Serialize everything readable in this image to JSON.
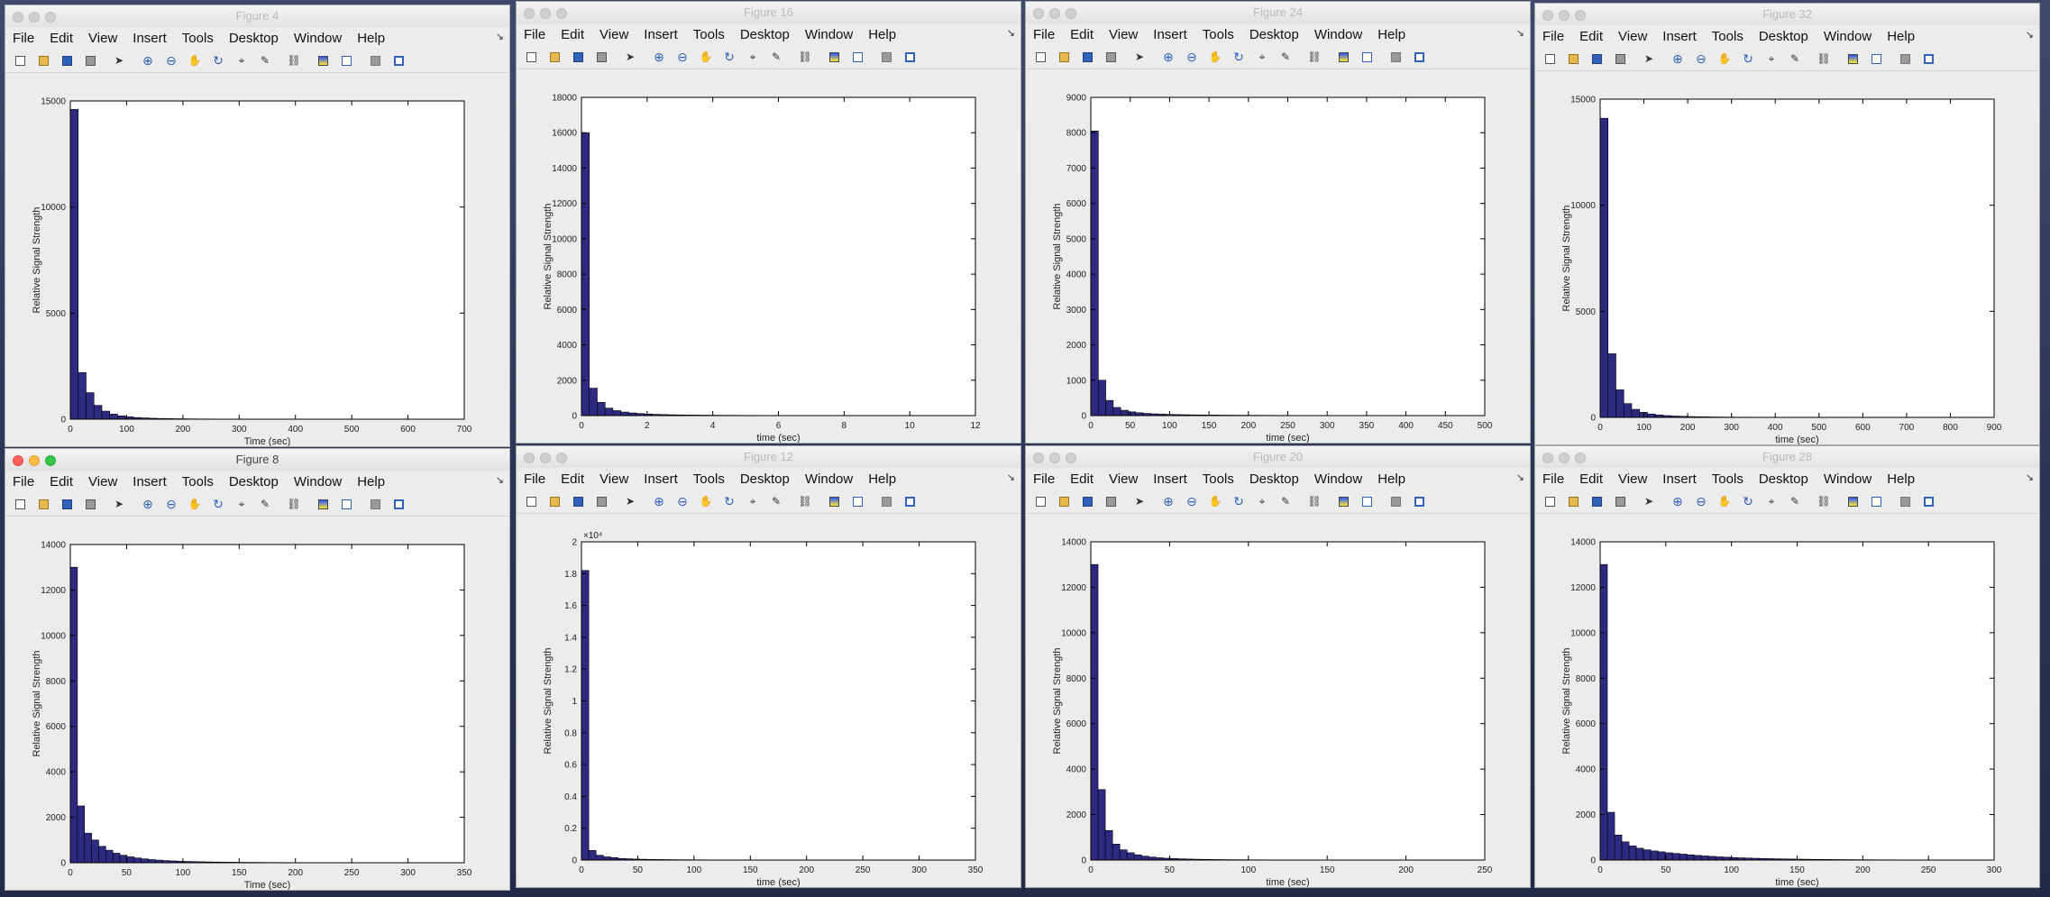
{
  "menu": [
    "File",
    "Edit",
    "View",
    "Insert",
    "Tools",
    "Desktop",
    "Window",
    "Help"
  ],
  "toolbar_icons": [
    "new-figure-icon",
    "open-file-icon",
    "save-icon",
    "print-icon",
    "edit-plot-arrow-icon",
    "zoom-in-icon",
    "zoom-out-icon",
    "pan-hand-icon",
    "rotate-3d-icon",
    "data-cursor-icon",
    "brush-icon",
    "link-plot-icon",
    "colorbar-icon",
    "legend-icon",
    "hide-plot-tools-icon",
    "show-plot-tools-icon"
  ],
  "colors": {
    "bar_fill": "#2e2a82",
    "bar_edge": "#000000",
    "axes_bg": "#ffffff",
    "window_bg": "#ececec"
  },
  "windows": [
    {
      "title": "Figure 4",
      "active": false
    },
    {
      "title": "Figure 16",
      "active": false
    },
    {
      "title": "Figure 24",
      "active": false
    },
    {
      "title": "Figure 32",
      "active": false
    },
    {
      "title": "Figure 8",
      "active": true
    },
    {
      "title": "Figure 12",
      "active": false
    },
    {
      "title": "Figure 20",
      "active": false
    },
    {
      "title": "Figure 28",
      "active": false
    }
  ],
  "chart_data": [
    {
      "figure": "Figure 4",
      "type": "bar",
      "xlabel": "Time (sec)",
      "ylabel": "Relative Signal Strength",
      "xlim": [
        0,
        700
      ],
      "ylim": [
        0,
        15000
      ],
      "xticks": [
        0,
        100,
        200,
        300,
        400,
        500,
        600,
        700
      ],
      "yticks": [
        0,
        5000,
        10000,
        15000
      ],
      "bin_width": 14,
      "values": [
        14600,
        2200,
        1250,
        650,
        380,
        240,
        160,
        110,
        80,
        60,
        45,
        35,
        28,
        22,
        18,
        15,
        12,
        10,
        8,
        6,
        5,
        4,
        3,
        3,
        2,
        2,
        2,
        1,
        1,
        1
      ]
    },
    {
      "figure": "Figure 16",
      "type": "bar",
      "xlabel": "time (sec)",
      "ylabel": "Relative Signal Strength",
      "xlim": [
        0,
        12
      ],
      "ylim": [
        0,
        18000
      ],
      "xticks": [
        0,
        2,
        4,
        6,
        8,
        10,
        12
      ],
      "yticks": [
        0,
        2000,
        4000,
        6000,
        8000,
        10000,
        12000,
        14000,
        16000,
        18000
      ],
      "bin_width": 0.24,
      "values": [
        16000,
        1550,
        750,
        420,
        280,
        200,
        150,
        115,
        90,
        72,
        58,
        48,
        40,
        34,
        29,
        25,
        22,
        19,
        17,
        15,
        13,
        12,
        11,
        10,
        9,
        8,
        7,
        6,
        6,
        5,
        5,
        4,
        4,
        4,
        3,
        3,
        3,
        3,
        2,
        2,
        2,
        2,
        2,
        2,
        1,
        1,
        1
      ]
    },
    {
      "figure": "Figure 24",
      "type": "bar",
      "xlabel": "time (sec)",
      "ylabel": "Relative Signal Strength",
      "xlim": [
        0,
        500
      ],
      "ylim": [
        0,
        9000
      ],
      "xticks": [
        0,
        50,
        100,
        150,
        200,
        250,
        300,
        350,
        400,
        450,
        500
      ],
      "yticks": [
        0,
        1000,
        2000,
        3000,
        4000,
        5000,
        6000,
        7000,
        8000,
        9000
      ],
      "bin_width": 9.5,
      "values": [
        8050,
        1000,
        430,
        230,
        150,
        105,
        80,
        62,
        50,
        41,
        34,
        29,
        25,
        22,
        19,
        17,
        15,
        13,
        12,
        11,
        10,
        9,
        8,
        7,
        7,
        6,
        6,
        5,
        5,
        5,
        4,
        4,
        4,
        3,
        3,
        3,
        3,
        3,
        2,
        2,
        2,
        2,
        2,
        2,
        2,
        1,
        1,
        1,
        1,
        1
      ]
    },
    {
      "figure": "Figure 32",
      "type": "bar",
      "xlabel": "time (sec)",
      "ylabel": "Relative Signal Strength",
      "xlim": [
        0,
        900
      ],
      "ylim": [
        0,
        15000
      ],
      "xticks": [
        0,
        100,
        200,
        300,
        400,
        500,
        600,
        700,
        800,
        900
      ],
      "yticks": [
        0,
        5000,
        10000,
        15000
      ],
      "bin_width": 18,
      "values": [
        14100,
        3000,
        1300,
        650,
        380,
        240,
        160,
        115,
        85,
        65,
        50,
        40,
        32,
        26,
        21,
        17,
        14,
        12,
        10,
        8,
        7,
        6,
        5,
        4,
        4,
        3,
        3,
        2,
        2,
        2,
        2,
        1,
        1,
        1,
        1,
        1,
        1,
        1,
        1,
        1
      ]
    },
    {
      "figure": "Figure 8",
      "type": "bar",
      "xlabel": "Time (sec)",
      "ylabel": "Relative Signal Strength",
      "xlim": [
        0,
        350
      ],
      "ylim": [
        0,
        14000
      ],
      "xticks": [
        0,
        50,
        100,
        150,
        200,
        250,
        300,
        350
      ],
      "yticks": [
        0,
        2000,
        4000,
        6000,
        8000,
        10000,
        12000,
        14000
      ],
      "bin_width": 6.3,
      "values": [
        13000,
        2500,
        1300,
        1000,
        720,
        550,
        420,
        330,
        260,
        210,
        170,
        140,
        115,
        95,
        80,
        68,
        58,
        50,
        43,
        37,
        32,
        28,
        24,
        21,
        18,
        16,
        14,
        12,
        11,
        10,
        9,
        8,
        7,
        6,
        6,
        5,
        5,
        4,
        4,
        3,
        3,
        3,
        3,
        2,
        2,
        2,
        2,
        2,
        2,
        1
      ]
    },
    {
      "figure": "Figure 12",
      "type": "bar",
      "xlabel": "time (sec)",
      "ylabel": "Relative Signal Strength",
      "exponent_label": "×10⁴",
      "xlim": [
        0,
        350
      ],
      "ylim": [
        0,
        2
      ],
      "xticks": [
        0,
        50,
        100,
        150,
        200,
        250,
        300,
        350
      ],
      "yticks": [
        0,
        0.2,
        0.4,
        0.6,
        0.8,
        1,
        1.2,
        1.4,
        1.6,
        1.8,
        2
      ],
      "bin_width": 6.5,
      "values": [
        1.82,
        0.06,
        0.03,
        0.02,
        0.015,
        0.01,
        0.008,
        0.006,
        0.005,
        0.004,
        0.0035,
        0.003,
        0.0025,
        0.002,
        0.002,
        0.0015,
        0.0015,
        0.001,
        0.001,
        0.001
      ]
    },
    {
      "figure": "Figure 20",
      "type": "bar",
      "xlabel": "time (sec)",
      "ylabel": "Relative Signal Strength",
      "xlim": [
        0,
        250
      ],
      "ylim": [
        0,
        14000
      ],
      "xticks": [
        0,
        50,
        100,
        150,
        200,
        250
      ],
      "yticks": [
        0,
        2000,
        4000,
        6000,
        8000,
        10000,
        12000,
        14000
      ],
      "bin_width": 4.6,
      "values": [
        13000,
        3100,
        1300,
        700,
        450,
        320,
        230,
        170,
        130,
        100,
        80,
        65,
        53,
        44,
        37,
        31,
        26,
        22,
        19,
        16,
        14,
        12,
        10,
        9,
        8,
        7,
        6,
        5,
        5,
        4,
        4,
        3,
        3,
        3,
        2,
        2,
        2,
        2,
        2,
        2,
        1,
        1,
        1,
        1,
        1
      ]
    },
    {
      "figure": "Figure 28",
      "type": "bar",
      "xlabel": "time (sec)",
      "ylabel": "Relative Signal Strength",
      "xlim": [
        0,
        300
      ],
      "ylim": [
        0,
        14000
      ],
      "xticks": [
        0,
        50,
        100,
        150,
        200,
        250,
        300
      ],
      "yticks": [
        0,
        2000,
        4000,
        6000,
        8000,
        10000,
        12000,
        14000
      ],
      "bin_width": 5.5,
      "values": [
        13000,
        2100,
        1100,
        800,
        620,
        520,
        450,
        400,
        360,
        320,
        290,
        260,
        230,
        205,
        180,
        160,
        140,
        125,
        110,
        98,
        88,
        78,
        70,
        62,
        55,
        49,
        44,
        39,
        35,
        31,
        28,
        25,
        22,
        20,
        18,
        16,
        14,
        12,
        11,
        10,
        9,
        8,
        7,
        6,
        6,
        5,
        5,
        4,
        4,
        3
      ]
    }
  ]
}
